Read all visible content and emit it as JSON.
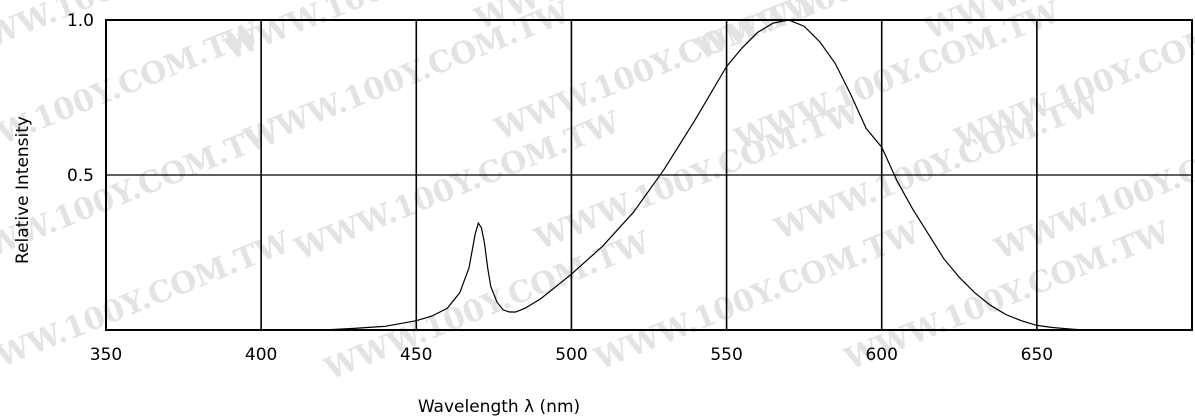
{
  "watermark": "WWW.100Y.COM.TW",
  "chart_data": {
    "type": "line",
    "title": "",
    "xlabel": "Wavelength λ (nm)",
    "ylabel": "Relative Intensity",
    "xlim": [
      350,
      700
    ],
    "ylim": [
      0,
      1.0
    ],
    "x_ticks": [
      350,
      400,
      450,
      500,
      550,
      600,
      650
    ],
    "x_tick_labels": [
      "350",
      "400",
      "450",
      "500",
      "550",
      "600",
      "650"
    ],
    "y_ticks": [
      0.5,
      1.0
    ],
    "y_tick_labels": [
      "0.5",
      "1.0"
    ],
    "grid": true,
    "legend": "none",
    "line_color": "#000000",
    "series": [
      {
        "x": [
          420,
          430,
          440,
          450,
          455,
          460,
          464,
          467,
          469,
          470,
          471,
          472,
          473,
          474,
          476,
          478,
          480,
          482,
          485,
          490,
          495,
          500,
          510,
          520,
          530,
          540,
          550,
          555,
          560,
          565,
          570,
          575,
          580,
          585,
          590,
          595,
          600,
          605,
          610,
          615,
          620,
          625,
          630,
          635,
          640,
          645,
          650,
          655,
          660,
          665
        ],
        "y": [
          0.0,
          0.005,
          0.012,
          0.03,
          0.045,
          0.07,
          0.12,
          0.2,
          0.31,
          0.345,
          0.33,
          0.28,
          0.2,
          0.14,
          0.09,
          0.065,
          0.058,
          0.058,
          0.07,
          0.1,
          0.14,
          0.18,
          0.27,
          0.38,
          0.52,
          0.68,
          0.85,
          0.91,
          0.96,
          0.99,
          1.0,
          0.98,
          0.93,
          0.86,
          0.76,
          0.65,
          0.59,
          0.48,
          0.39,
          0.31,
          0.23,
          0.17,
          0.12,
          0.08,
          0.05,
          0.03,
          0.015,
          0.008,
          0.004,
          0.0
        ]
      }
    ]
  }
}
